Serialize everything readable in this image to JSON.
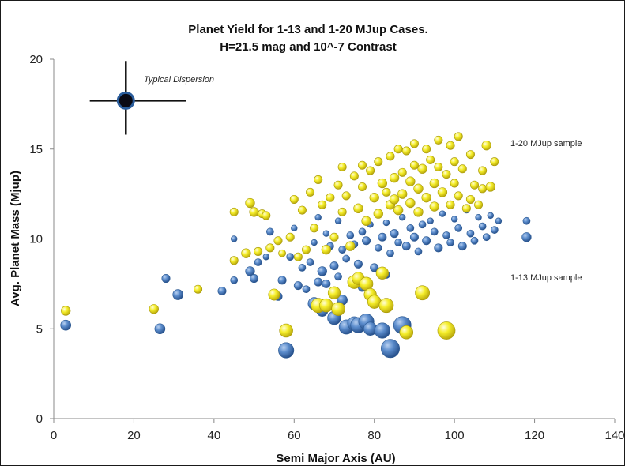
{
  "chart_data": {
    "type": "scatter",
    "title_line1": "Planet Yield for 1-13 and 1-20 MJup Cases.",
    "title_line2": "H=21.5 mag and 10^-7 Contrast",
    "xlabel": "Semi Major Axis (AU)",
    "ylabel": "Avg. Planet Mass (Mjup)",
    "xlim": [
      0,
      140
    ],
    "ylim": [
      0,
      20
    ],
    "x_ticks": [
      0,
      20,
      40,
      60,
      80,
      100,
      120,
      140
    ],
    "y_ticks": [
      0,
      5,
      10,
      15,
      20
    ],
    "grid": false,
    "annotations": {
      "dispersion_label": "Typical Dispersion",
      "label_1_20": "1-20 MJup sample",
      "label_1_13": "1-13 MJup sample"
    },
    "dispersion_marker": {
      "x": 18,
      "y": 17.7,
      "x_err": [
        9,
        15
      ],
      "y_err": [
        2.2,
        1.9
      ]
    },
    "colors": {
      "series_1_13": "#4f7fbf",
      "series_1_20": "#f0e61e",
      "marker_outline": "#2a5d9c"
    },
    "series": [
      {
        "key": "s1_13",
        "points": [
          [
            3,
            5.2,
            1
          ],
          [
            26.5,
            5.0,
            1
          ],
          [
            31,
            6.9,
            1
          ],
          [
            28,
            7.8,
            0.8
          ],
          [
            42,
            7.1,
            0.8
          ],
          [
            45,
            7.7,
            0.7
          ],
          [
            45,
            10.0,
            0.6
          ],
          [
            49,
            8.2,
            0.9
          ],
          [
            50,
            7.8,
            0.8
          ],
          [
            51,
            8.7,
            0.7
          ],
          [
            53,
            9.0,
            0.6
          ],
          [
            54,
            10.4,
            0.7
          ],
          [
            56,
            6.8,
            0.8
          ],
          [
            57,
            7.7,
            0.8
          ],
          [
            58,
            3.8,
            1.5
          ],
          [
            59,
            9.0,
            0.7
          ],
          [
            60,
            10.6,
            0.6
          ],
          [
            61,
            7.4,
            0.8
          ],
          [
            62,
            8.4,
            0.7
          ],
          [
            63,
            7.2,
            0.7
          ],
          [
            64,
            8.7,
            0.7
          ],
          [
            65,
            6.4,
            1.2
          ],
          [
            65,
            9.8,
            0.6
          ],
          [
            66,
            7.6,
            0.8
          ],
          [
            66,
            11.2,
            0.6
          ],
          [
            67,
            6.0,
            1.1
          ],
          [
            67,
            8.2,
            0.9
          ],
          [
            68,
            7.5,
            0.8
          ],
          [
            68,
            10.3,
            0.6
          ],
          [
            69,
            9.6,
            0.7
          ],
          [
            70,
            5.6,
            1.3
          ],
          [
            70,
            8.5,
            0.8
          ],
          [
            71,
            7.9,
            0.7
          ],
          [
            71,
            11.0,
            0.6
          ],
          [
            72,
            6.6,
            1.0
          ],
          [
            72,
            9.4,
            0.7
          ],
          [
            73,
            5.1,
            1.4
          ],
          [
            73,
            8.9,
            0.7
          ],
          [
            74,
            10.2,
            0.7
          ],
          [
            75,
            5.3,
            1.3
          ],
          [
            75,
            9.7,
            0.7
          ],
          [
            76,
            5.2,
            1.5
          ],
          [
            76,
            8.6,
            0.8
          ],
          [
            77,
            10.4,
            0.7
          ],
          [
            77,
            7.3,
            0.8
          ],
          [
            78,
            5.4,
            1.5
          ],
          [
            78,
            9.9,
            0.8
          ],
          [
            79,
            10.8,
            0.6
          ],
          [
            79,
            5.0,
            1.3
          ],
          [
            80,
            8.4,
            0.8
          ],
          [
            81,
            9.5,
            0.7
          ],
          [
            81,
            11.5,
            0.6
          ],
          [
            82,
            4.9,
            1.5
          ],
          [
            82,
            10.1,
            0.8
          ],
          [
            83,
            8.0,
            0.7
          ],
          [
            83,
            10.9,
            0.6
          ],
          [
            84,
            3.9,
            1.8
          ],
          [
            84,
            9.2,
            0.7
          ],
          [
            85,
            10.3,
            0.8
          ],
          [
            86,
            9.8,
            0.7
          ],
          [
            87,
            11.2,
            0.6
          ],
          [
            87,
            5.2,
            1.7
          ],
          [
            88,
            9.6,
            0.8
          ],
          [
            89,
            10.6,
            0.7
          ],
          [
            90,
            10.1,
            0.8
          ],
          [
            91,
            9.3,
            0.7
          ],
          [
            92,
            10.8,
            0.7
          ],
          [
            93,
            9.9,
            0.8
          ],
          [
            94,
            11.0,
            0.6
          ],
          [
            95,
            10.4,
            0.7
          ],
          [
            96,
            9.5,
            0.8
          ],
          [
            97,
            11.4,
            0.6
          ],
          [
            98,
            10.2,
            0.7
          ],
          [
            99,
            9.8,
            0.7
          ],
          [
            100,
            11.1,
            0.6
          ],
          [
            101,
            10.6,
            0.7
          ],
          [
            102,
            9.6,
            0.8
          ],
          [
            103,
            11.6,
            0.6
          ],
          [
            104,
            10.3,
            0.7
          ],
          [
            105,
            9.9,
            0.7
          ],
          [
            106,
            11.2,
            0.6
          ],
          [
            107,
            10.7,
            0.7
          ],
          [
            108,
            10.1,
            0.7
          ],
          [
            109,
            11.3,
            0.6
          ],
          [
            110,
            10.5,
            0.7
          ],
          [
            111,
            11.0,
            0.6
          ],
          [
            118,
            11.0,
            0.7
          ],
          [
            118,
            10.1,
            0.9
          ]
        ]
      },
      {
        "key": "s1_20",
        "points": [
          [
            3,
            6.0,
            0.9
          ],
          [
            25,
            6.1,
            0.9
          ],
          [
            36,
            7.2,
            0.8
          ],
          [
            45,
            11.5,
            0.8
          ],
          [
            45,
            8.8,
            0.8
          ],
          [
            48,
            9.2,
            0.9
          ],
          [
            49,
            12.0,
            0.9
          ],
          [
            50,
            11.5,
            0.9
          ],
          [
            51,
            9.3,
            0.8
          ],
          [
            52,
            11.4,
            0.8
          ],
          [
            53,
            11.3,
            0.8
          ],
          [
            54,
            9.5,
            0.8
          ],
          [
            55,
            6.9,
            1.1
          ],
          [
            56,
            9.9,
            0.8
          ],
          [
            57,
            9.2,
            0.7
          ],
          [
            58,
            4.9,
            1.3
          ],
          [
            59,
            10.1,
            0.8
          ],
          [
            60,
            12.2,
            0.8
          ],
          [
            61,
            9.0,
            0.8
          ],
          [
            62,
            11.6,
            0.8
          ],
          [
            63,
            9.4,
            0.8
          ],
          [
            64,
            12.6,
            0.8
          ],
          [
            65,
            10.6,
            0.8
          ],
          [
            66,
            6.3,
            1.4
          ],
          [
            66,
            13.3,
            0.8
          ],
          [
            67,
            11.9,
            0.8
          ],
          [
            68,
            6.3,
            1.3
          ],
          [
            68,
            9.4,
            0.9
          ],
          [
            69,
            12.3,
            0.8
          ],
          [
            70,
            10.1,
            0.8
          ],
          [
            70,
            7.0,
            1.2
          ],
          [
            71,
            13.0,
            0.8
          ],
          [
            71,
            6.1,
            1.3
          ],
          [
            72,
            11.5,
            0.8
          ],
          [
            72,
            14.0,
            0.8
          ],
          [
            73,
            12.4,
            0.8
          ],
          [
            74,
            9.6,
            0.9
          ],
          [
            75,
            13.5,
            0.8
          ],
          [
            75,
            7.6,
            1.3
          ],
          [
            76,
            11.7,
            0.9
          ],
          [
            76,
            7.8,
            1.2
          ],
          [
            77,
            14.1,
            0.8
          ],
          [
            77,
            12.9,
            0.8
          ],
          [
            78,
            11.0,
            0.9
          ],
          [
            78,
            7.5,
            1.3
          ],
          [
            79,
            13.8,
            0.8
          ],
          [
            79,
            6.9,
            1.2
          ],
          [
            80,
            12.3,
            0.9
          ],
          [
            80,
            6.5,
            1.3
          ],
          [
            81,
            14.3,
            0.8
          ],
          [
            81,
            11.4,
            0.9
          ],
          [
            82,
            13.1,
            0.9
          ],
          [
            82,
            8.1,
            1.2
          ],
          [
            83,
            12.6,
            0.8
          ],
          [
            83,
            6.3,
            1.4
          ],
          [
            84,
            14.6,
            0.8
          ],
          [
            84,
            11.9,
            0.9
          ],
          [
            85,
            13.4,
            0.9
          ],
          [
            85,
            12.2,
            0.9
          ],
          [
            86,
            15.0,
            0.8
          ],
          [
            86,
            11.6,
            0.9
          ],
          [
            87,
            13.7,
            0.8
          ],
          [
            87,
            12.5,
            0.9
          ],
          [
            88,
            14.9,
            0.8
          ],
          [
            88,
            4.8,
            1.3
          ],
          [
            89,
            13.2,
            0.9
          ],
          [
            89,
            12.0,
            0.9
          ],
          [
            90,
            15.3,
            0.8
          ],
          [
            90,
            14.1,
            0.8
          ],
          [
            91,
            12.8,
            0.9
          ],
          [
            91,
            11.5,
            0.9
          ],
          [
            92,
            13.9,
            0.9
          ],
          [
            92,
            7.0,
            1.4
          ],
          [
            93,
            15.0,
            0.8
          ],
          [
            93,
            12.3,
            0.9
          ],
          [
            94,
            14.4,
            0.8
          ],
          [
            95,
            13.1,
            0.9
          ],
          [
            95,
            11.8,
            0.9
          ],
          [
            96,
            15.5,
            0.8
          ],
          [
            96,
            14.0,
            0.8
          ],
          [
            97,
            12.6,
            0.9
          ],
          [
            98,
            13.6,
            0.8
          ],
          [
            98,
            4.9,
            1.7
          ],
          [
            99,
            15.2,
            0.8
          ],
          [
            99,
            11.9,
            0.8
          ],
          [
            100,
            14.3,
            0.8
          ],
          [
            100,
            13.1,
            0.8
          ],
          [
            101,
            15.7,
            0.8
          ],
          [
            101,
            12.4,
            0.8
          ],
          [
            102,
            13.9,
            0.8
          ],
          [
            103,
            11.7,
            0.8
          ],
          [
            104,
            14.7,
            0.8
          ],
          [
            104,
            12.2,
            0.8
          ],
          [
            105,
            13.0,
            0.8
          ],
          [
            106,
            11.9,
            0.8
          ],
          [
            107,
            12.8,
            0.8
          ],
          [
            107,
            13.8,
            0.8
          ],
          [
            108,
            15.2,
            0.9
          ],
          [
            109,
            12.9,
            0.9
          ],
          [
            110,
            14.3,
            0.8
          ]
        ]
      }
    ]
  }
}
